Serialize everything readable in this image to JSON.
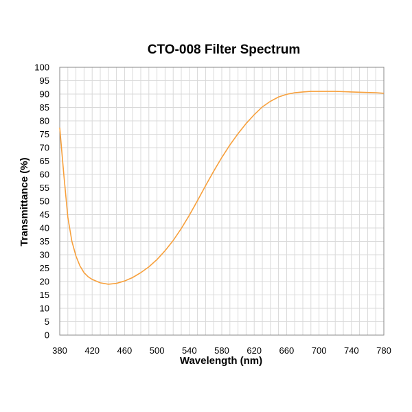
{
  "chart_data": {
    "type": "line",
    "title": "CTO-008 Filter Spectrum",
    "xlabel": "Wavelength (nm)",
    "ylabel": "Transmittance (%)",
    "xlim": [
      380,
      780
    ],
    "ylim": [
      0,
      100
    ],
    "x_ticks": [
      "380",
      "420",
      "460",
      "500",
      "540",
      "580",
      "620",
      "660",
      "700",
      "740",
      "780"
    ],
    "y_ticks": [
      "0",
      "5",
      "10",
      "15",
      "20",
      "25",
      "30",
      "35",
      "40",
      "45",
      "50",
      "55",
      "60",
      "65",
      "70",
      "75",
      "80",
      "85",
      "90",
      "95",
      "100"
    ],
    "grid": true,
    "line_color": "#F7A03C",
    "series": [
      {
        "x": [
          380,
          385,
          390,
          395,
          400,
          405,
          410,
          415,
          420,
          430,
          440,
          450,
          460,
          470,
          480,
          490,
          500,
          510,
          520,
          530,
          540,
          550,
          560,
          570,
          580,
          590,
          600,
          610,
          620,
          630,
          640,
          650,
          660,
          670,
          680,
          690,
          700,
          710,
          720,
          730,
          740,
          750,
          760,
          770,
          780
        ],
        "y": [
          77.5,
          60,
          44,
          35,
          29.5,
          25.8,
          23.3,
          21.8,
          20.8,
          19.5,
          19.0,
          19.3,
          20.2,
          21.5,
          23.3,
          25.5,
          28.2,
          31.5,
          35.3,
          39.8,
          44.8,
          50.2,
          55.8,
          61.2,
          66.3,
          71.0,
          75.2,
          79.0,
          82.3,
          85.2,
          87.3,
          88.9,
          89.9,
          90.5,
          90.8,
          91.0,
          91.0,
          91.0,
          91.0,
          90.9,
          90.8,
          90.7,
          90.6,
          90.5,
          90.3
        ]
      }
    ]
  }
}
